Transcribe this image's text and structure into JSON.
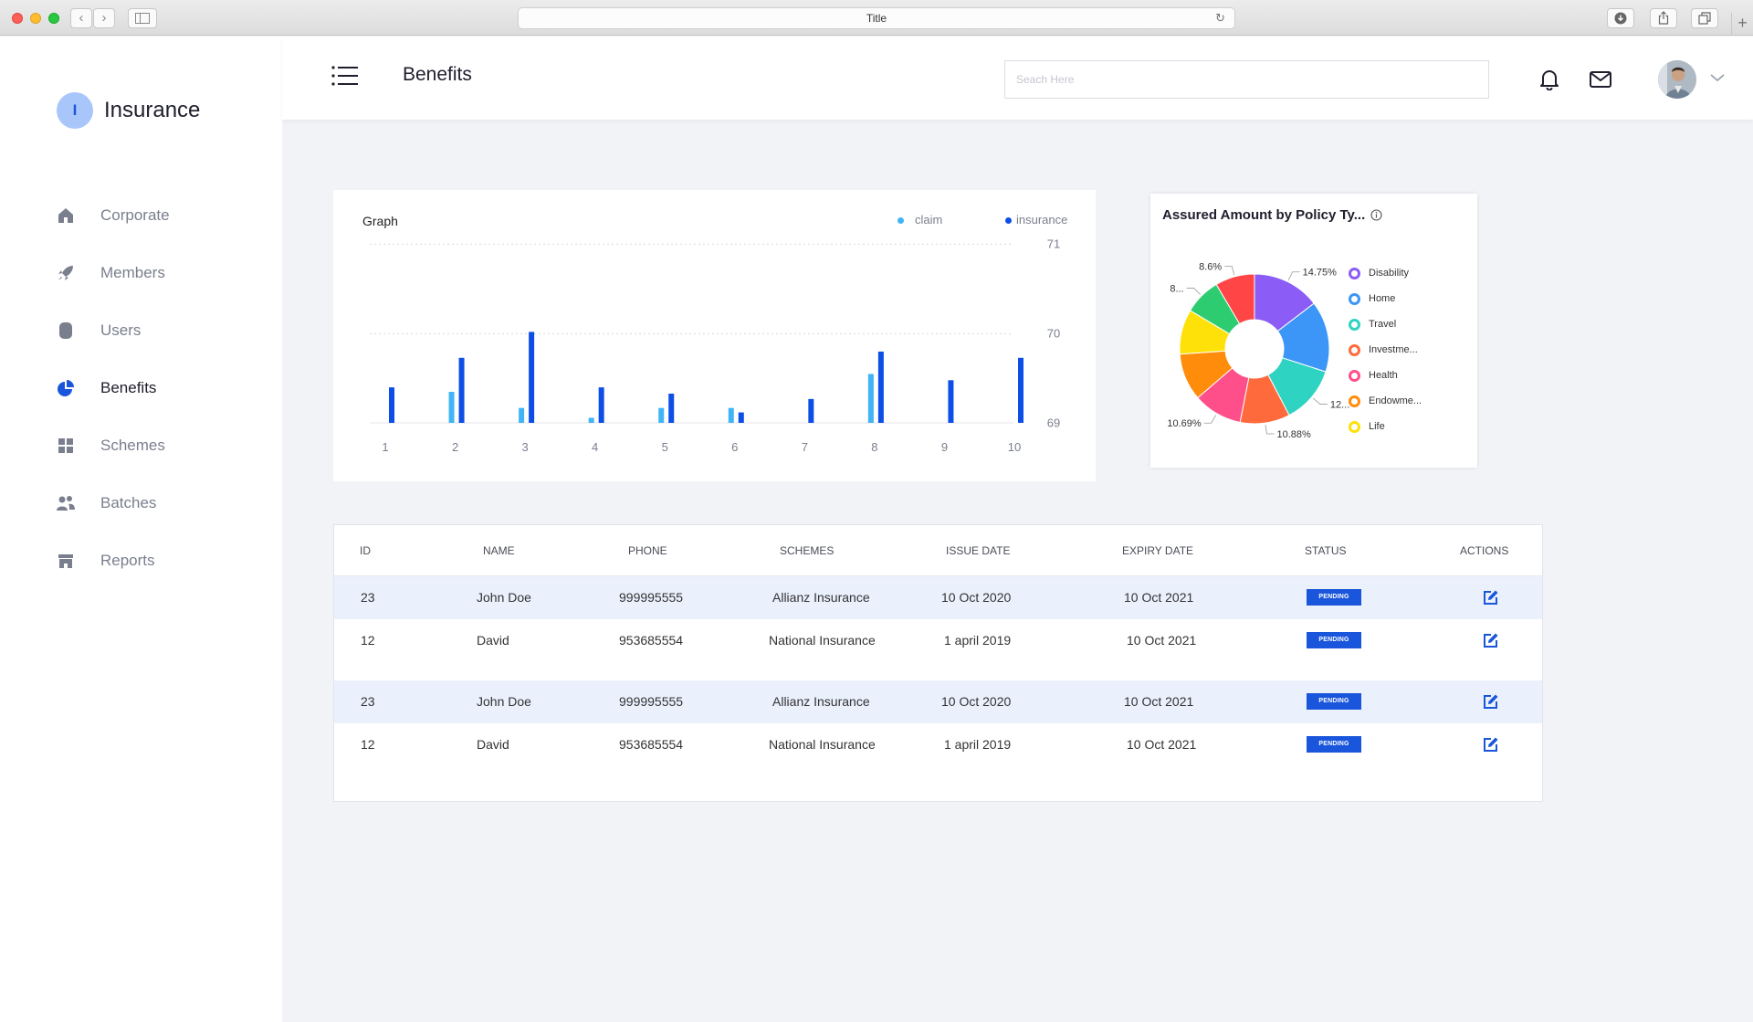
{
  "browser": {
    "title": "Title"
  },
  "brand": {
    "initial": "I",
    "name": "Insurance"
  },
  "sidebar": {
    "items": [
      {
        "label": "Corporate",
        "icon": "home-icon",
        "active": false
      },
      {
        "label": "Members",
        "icon": "rocket-icon",
        "active": false
      },
      {
        "label": "Users",
        "icon": "user-icon",
        "active": false
      },
      {
        "label": "Benefits",
        "icon": "pie-chart-icon",
        "active": true
      },
      {
        "label": "Schemes",
        "icon": "grid-icon",
        "active": false
      },
      {
        "label": "Batches",
        "icon": "users-icon",
        "active": false
      },
      {
        "label": "Reports",
        "icon": "store-icon",
        "active": false
      }
    ]
  },
  "header": {
    "title": "Benefits",
    "search_placeholder": "Seach Here"
  },
  "colors": {
    "accent": "#1a56db",
    "claim": "#41b4f5",
    "insurance": "#0d4fe6",
    "muted": "#7a7f8e"
  },
  "graph": {
    "title": "Graph",
    "legend": {
      "claim": "claim",
      "insurance": "insurance"
    }
  },
  "pie": {
    "title": "Assured Amount by Policy Ty..."
  },
  "chart_data": [
    {
      "type": "bar",
      "title": "Graph",
      "categories": [
        "1",
        "2",
        "3",
        "4",
        "5",
        "6",
        "7",
        "8",
        "9",
        "10"
      ],
      "series": [
        {
          "name": "claim",
          "color": "#41b4f5",
          "values": [
            68.98,
            69.35,
            69.17,
            69.06,
            69.17,
            69.17,
            68.95,
            69.55,
            68.98,
            68.95
          ]
        },
        {
          "name": "insurance",
          "color": "#0d4fe6",
          "values": [
            69.4,
            69.73,
            70.02,
            69.4,
            69.33,
            69.12,
            69.27,
            69.8,
            69.48,
            69.73
          ]
        }
      ],
      "y_ticks": [
        "71",
        "70",
        "69"
      ],
      "ylim": [
        68.35,
        71.3
      ],
      "grid": true,
      "legend_position": "top-right"
    },
    {
      "type": "pie",
      "title": "Assured Amount by Policy Ty...",
      "donut": true,
      "legend_position": "right",
      "slices": [
        {
          "label": "Disability",
          "value": 14.75,
          "color": "#8b5cf6",
          "data_label": "14.75%"
        },
        {
          "label": "Home",
          "value": 15.5,
          "color": "#3b96f7",
          "data_label": ""
        },
        {
          "label": "Travel",
          "value": 12.5,
          "color": "#2ed3c1",
          "data_label": "12..."
        },
        {
          "label": "Investme...",
          "value": 10.88,
          "color": "#ff6a3c",
          "data_label": "10.88%"
        },
        {
          "label": "Health",
          "value": 10.69,
          "color": "#ff4f8b",
          "data_label": "10.69%"
        },
        {
          "label": "Endowme...",
          "value": 10.3,
          "color": "#ff8c0a",
          "data_label": ""
        },
        {
          "label": "Life",
          "value": 9.78,
          "color": "#ffe10a",
          "data_label": ""
        },
        {
          "label": "",
          "value": 8.0,
          "color": "#2ecc71",
          "data_label": "8..."
        },
        {
          "label": "",
          "value": 8.6,
          "color": "#ff4545",
          "data_label": "8.6%"
        }
      ]
    }
  ],
  "table": {
    "headers": [
      "ID",
      "NAME",
      "PHONE",
      "SCHEMES",
      "ISSUE DATE",
      "EXPIRY DATE",
      "STATUS",
      "ACTIONS"
    ],
    "rows": [
      {
        "id": "23",
        "name": "John Doe",
        "phone": "999995555",
        "scheme": "Allianz Insurance",
        "issue": "10 Oct 2020",
        "expiry": "10 Oct 2021",
        "status": "PENDING"
      },
      {
        "id": "12",
        "name": "David",
        "phone": "953685554",
        "scheme": "National Insurance",
        "issue": "1 april 2019",
        "expiry": "10 Oct 2021",
        "status": "PENDING"
      },
      {
        "id": "23",
        "name": "John Doe",
        "phone": "999995555",
        "scheme": "Allianz Insurance",
        "issue": "10 Oct 2020",
        "expiry": "10 Oct 2021",
        "status": "PENDING"
      },
      {
        "id": "12",
        "name": "David",
        "phone": "953685554",
        "scheme": "National Insurance",
        "issue": "1 april 2019",
        "expiry": "10 Oct 2021",
        "status": "PENDING"
      }
    ]
  }
}
